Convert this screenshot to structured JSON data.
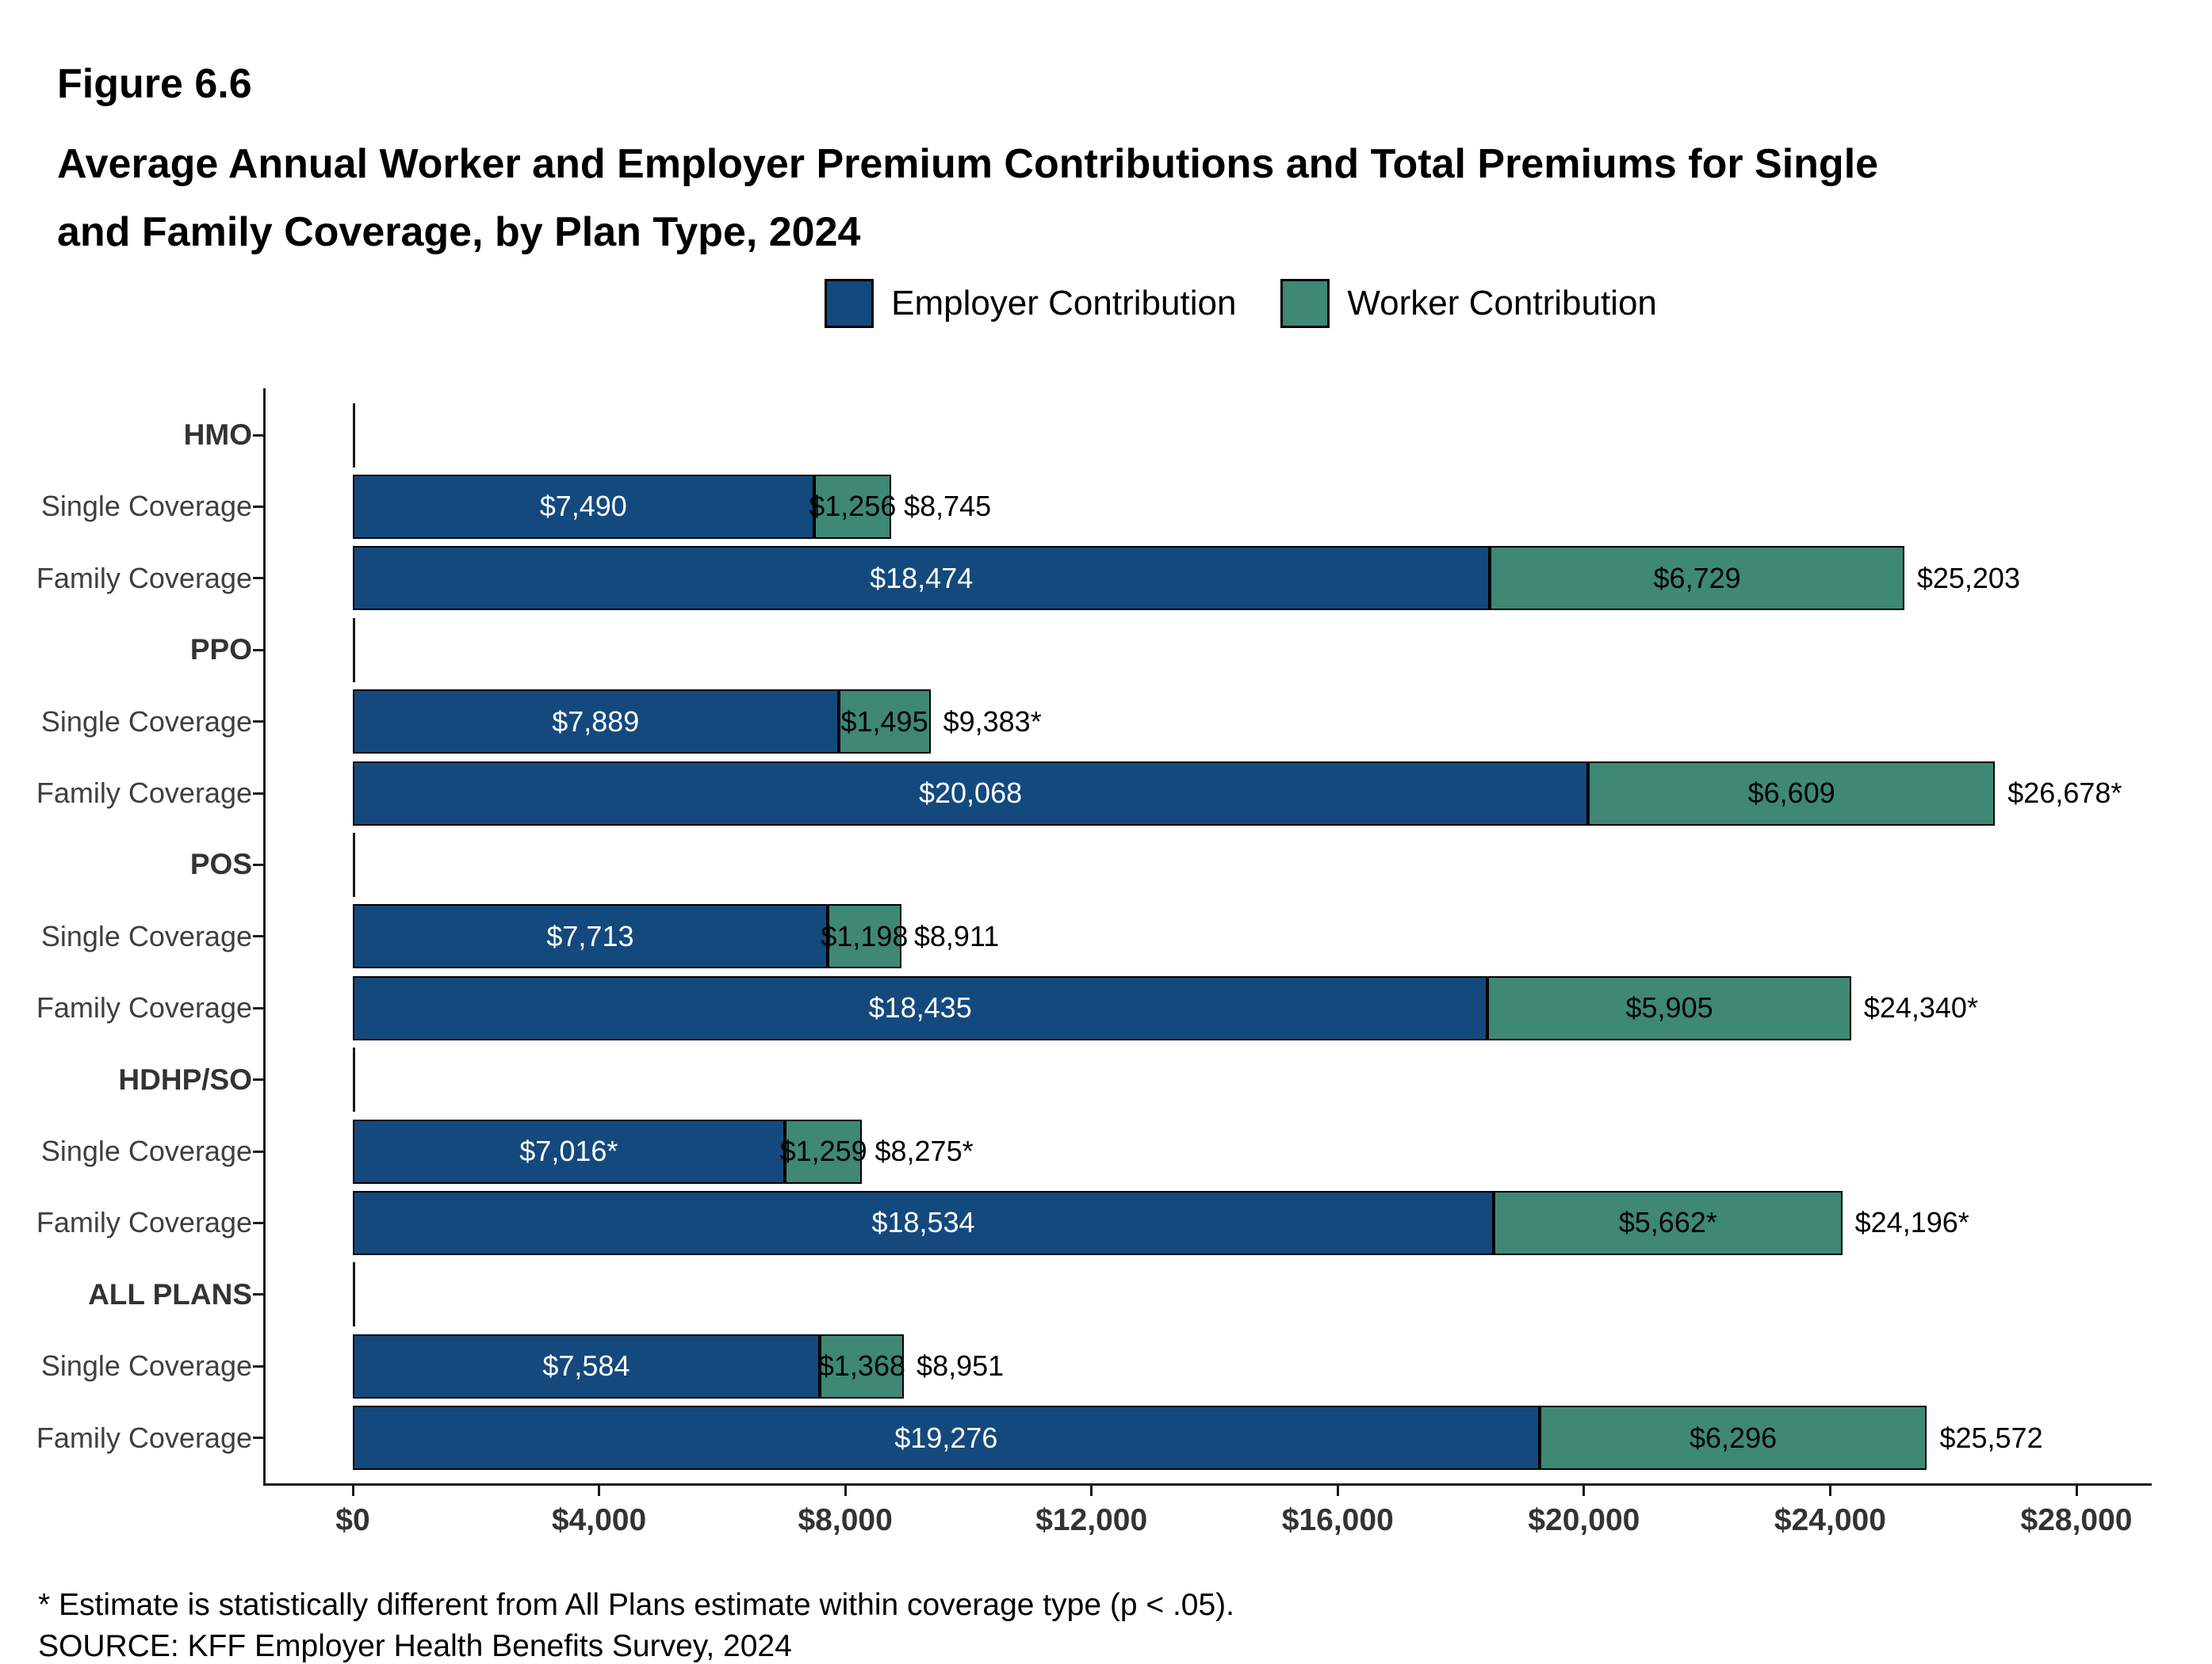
{
  "header": {
    "figure_label": "Figure 6.6",
    "title": "Average Annual Worker and Employer Premium Contributions and Total Premiums for Single\nand Family Coverage, by Plan Type, 2024"
  },
  "legend": {
    "items": [
      {
        "label": "Employer Contribution",
        "color": "#14497E"
      },
      {
        "label": "Worker Contribution",
        "color": "#3E8874"
      }
    ]
  },
  "footnotes": [
    "* Estimate is statistically different from All Plans estimate within coverage type (p < .05).",
    "SOURCE: KFF Employer Health Benefits Survey, 2024"
  ],
  "chart_data": {
    "type": "bar",
    "orientation": "horizontal",
    "stacked": true,
    "title": "Average Annual Worker and Employer Premium Contributions and Total Premiums for Single and Family Coverage, by Plan Type, 2024",
    "legend_position": "top",
    "series_names": [
      "Employer Contribution",
      "Worker Contribution"
    ],
    "x_axis": {
      "min": 0,
      "max": 28000,
      "tick_step": 4000,
      "tick_labels": [
        "$0",
        "$4,000",
        "$8,000",
        "$12,000",
        "$16,000",
        "$20,000",
        "$24,000",
        "$28,000"
      ]
    },
    "groups": [
      {
        "label": "HMO",
        "rows": [
          {
            "label": "Single Coverage",
            "employer": 7490,
            "worker": 1256,
            "total": 8745,
            "employer_label": "$7,490",
            "worker_label": "$1,256",
            "total_label": "$8,745"
          },
          {
            "label": "Family Coverage",
            "employer": 18474,
            "worker": 6729,
            "total": 25203,
            "employer_label": "$18,474",
            "worker_label": "$6,729",
            "total_label": "$25,203"
          }
        ]
      },
      {
        "label": "PPO",
        "rows": [
          {
            "label": "Single Coverage",
            "employer": 7889,
            "worker": 1495,
            "total": 9383,
            "employer_label": "$7,889",
            "worker_label": "$1,495",
            "total_label": "$9,383*"
          },
          {
            "label": "Family Coverage",
            "employer": 20068,
            "worker": 6609,
            "total": 26678,
            "employer_label": "$20,068",
            "worker_label": "$6,609",
            "total_label": "$26,678*"
          }
        ]
      },
      {
        "label": "POS",
        "rows": [
          {
            "label": "Single Coverage",
            "employer": 7713,
            "worker": 1198,
            "total": 8911,
            "employer_label": "$7,713",
            "worker_label": "$1,198",
            "total_label": "$8,911"
          },
          {
            "label": "Family Coverage",
            "employer": 18435,
            "worker": 5905,
            "total": 24340,
            "employer_label": "$18,435",
            "worker_label": "$5,905",
            "total_label": "$24,340*"
          }
        ]
      },
      {
        "label": "HDHP/SO",
        "rows": [
          {
            "label": "Single Coverage",
            "employer": 7016,
            "worker": 1259,
            "total": 8275,
            "employer_label": "$7,016*",
            "worker_label": "$1,259",
            "total_label": "$8,275*"
          },
          {
            "label": "Family Coverage",
            "employer": 18534,
            "worker": 5662,
            "total": 24196,
            "employer_label": "$18,534",
            "worker_label": "$5,662*",
            "total_label": "$24,196*"
          }
        ]
      },
      {
        "label": "ALL PLANS",
        "rows": [
          {
            "label": "Single Coverage",
            "employer": 7584,
            "worker": 1368,
            "total": 8951,
            "employer_label": "$7,584",
            "worker_label": "$1,368",
            "total_label": "$8,951"
          },
          {
            "label": "Family Coverage",
            "employer": 19276,
            "worker": 6296,
            "total": 25572,
            "employer_label": "$19,276",
            "worker_label": "$6,296",
            "total_label": "$25,572"
          }
        ]
      }
    ]
  }
}
